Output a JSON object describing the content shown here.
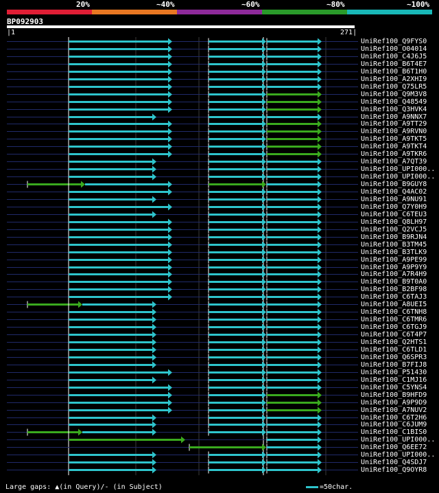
{
  "legend": {
    "labels": [
      "20%",
      "~40%",
      "~60%",
      "~80%",
      "~100%"
    ],
    "colors": [
      "#e01e35",
      "#e87722",
      "#8e2a9a",
      "#2a9a2a",
      "#19b8b8"
    ]
  },
  "query": {
    "name": "BP092903",
    "start": "1",
    "end": "271"
  },
  "hit_colors": {
    "cyan": "#2ec4cc",
    "green": "#3aaa1e",
    "baseline": "#202a6a"
  },
  "hits": [
    {
      "name": "UniRef100_Q9FYS0",
      "t": "c"
    },
    {
      "name": "UniRef100_O04014",
      "t": "c"
    },
    {
      "name": "UniRef100_C4J6J5",
      "t": "c"
    },
    {
      "name": "UniRef100_B6T4E7",
      "t": "c"
    },
    {
      "name": "UniRef100_B6T1H0",
      "t": "c"
    },
    {
      "name": "UniRef100_A2XHI9",
      "t": "c"
    },
    {
      "name": "UniRef100_Q75LR5",
      "t": "c"
    },
    {
      "name": "UniRef100_Q9M3V8",
      "t": "g"
    },
    {
      "name": "UniRef100_Q48549",
      "t": "g"
    },
    {
      "name": "UniRef100_Q3HVK4",
      "t": "g"
    },
    {
      "name": "UniRef100_A9NNX7",
      "t": "s"
    },
    {
      "name": "UniRef100_A9TT29",
      "t": "g"
    },
    {
      "name": "UniRef100_A9RVN0",
      "t": "g"
    },
    {
      "name": "UniRef100_A9TKT5",
      "t": "g"
    },
    {
      "name": "UniRef100_A9TKT4",
      "t": "g"
    },
    {
      "name": "UniRef100_A9TKR6",
      "t": "g"
    },
    {
      "name": "UniRef100_A7QT39",
      "t": "s"
    },
    {
      "name": "UniRef100_UPI000..",
      "t": "s"
    },
    {
      "name": "UniRef100_UPI000..",
      "t": "s"
    },
    {
      "name": "UniRef100_B9GUY8",
      "t": "gx"
    },
    {
      "name": "UniRef100_Q4AC02",
      "t": "c"
    },
    {
      "name": "UniRef100_A9NU91",
      "t": "s"
    },
    {
      "name": "UniRef100_Q7Y0H9",
      "t": "c"
    },
    {
      "name": "UniRef100_C6TEU3",
      "t": "s"
    },
    {
      "name": "UniRef100_Q8LH97",
      "t": "c"
    },
    {
      "name": "UniRef100_Q2VCJ5",
      "t": "c"
    },
    {
      "name": "UniRef100_B9RJN4",
      "t": "c"
    },
    {
      "name": "UniRef100_B3TM45",
      "t": "c"
    },
    {
      "name": "UniRef100_B3TLK9",
      "t": "c"
    },
    {
      "name": "UniRef100_A9PE99",
      "t": "c"
    },
    {
      "name": "UniRef100_A9P9Y9",
      "t": "c"
    },
    {
      "name": "UniRef100_A7R4H9",
      "t": "c"
    },
    {
      "name": "UniRef100_B9T0A0",
      "t": "c"
    },
    {
      "name": "UniRef100_B2BF98",
      "t": "c"
    },
    {
      "name": "UniRef100_C6TAJ3",
      "t": "c"
    },
    {
      "name": "UniRef100_A8UEI5",
      "t": "gx2"
    },
    {
      "name": "UniRef100_C6TNH8",
      "t": "s"
    },
    {
      "name": "UniRef100_C6TMR6",
      "t": "s"
    },
    {
      "name": "UniRef100_C6TGJ9",
      "t": "s"
    },
    {
      "name": "UniRef100_C6T4P7",
      "t": "s"
    },
    {
      "name": "UniRef100_Q2HTS1",
      "t": "s"
    },
    {
      "name": "UniRef100_C6TLD1",
      "t": "s"
    },
    {
      "name": "UniRef100_Q6SPR3",
      "t": "s"
    },
    {
      "name": "UniRef100_B7FIJ8",
      "t": "s"
    },
    {
      "name": "UniRef100_P51430",
      "t": "c"
    },
    {
      "name": "UniRef100_C1MJ16",
      "t": "s"
    },
    {
      "name": "UniRef100_C5YNS4",
      "t": "c"
    },
    {
      "name": "UniRef100_B9HFD9",
      "t": "g"
    },
    {
      "name": "UniRef100_A9P9D9",
      "t": "g"
    },
    {
      "name": "UniRef100_A7NUV2",
      "t": "g"
    },
    {
      "name": "UniRef100_C6T2H6",
      "t": "s"
    },
    {
      "name": "UniRef100_C6JUM9",
      "t": "s"
    },
    {
      "name": "UniRef100_C1BIS0",
      "t": "gx2"
    },
    {
      "name": "UniRef100_UPI000..",
      "t": "gl"
    },
    {
      "name": "UniRef100_Q6EE72",
      "t": "gm"
    },
    {
      "name": "UniRef100_UPI000..",
      "t": "s"
    },
    {
      "name": "UniRef100_Q4SDJ7",
      "t": "s"
    },
    {
      "name": "UniRef100_Q9OYR8",
      "t": "s"
    }
  ],
  "footer": {
    "gaps_text": "Large gaps: ▲(in Query)/- (in Subject)",
    "scale_text": "=50char."
  }
}
